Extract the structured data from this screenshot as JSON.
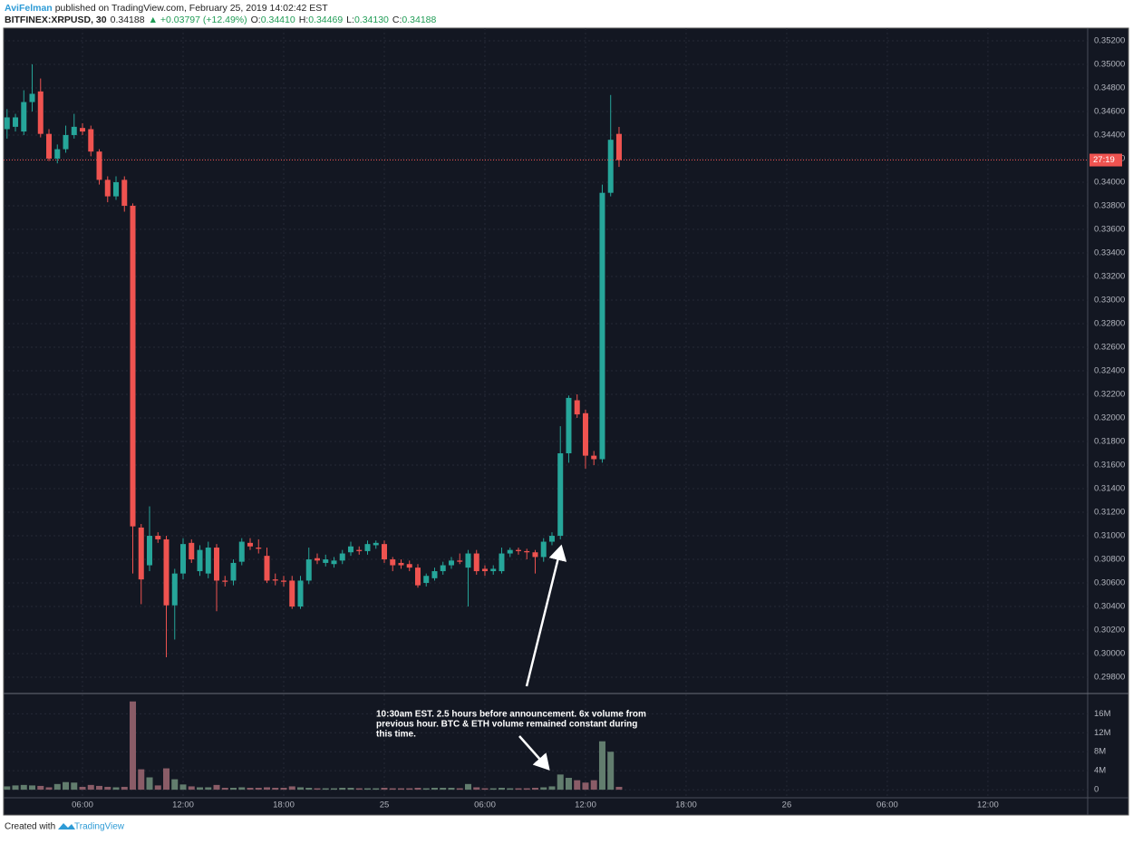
{
  "header": {
    "author": "AviFelman",
    "published": "published on TradingView.com, February 25, 2019 14:02:42 EST",
    "symbol": "BITFINEX:XRPUSD, 30",
    "last": "0.34188",
    "change": "▲ +0.03797 (+12.49%)",
    "ohlc": [
      {
        "label": "O:",
        "value": "0.34410"
      },
      {
        "label": "H:",
        "value": "0.34469"
      },
      {
        "label": "L:",
        "value": "0.34130"
      },
      {
        "label": "C:",
        "value": "0.34188"
      }
    ]
  },
  "footer": {
    "text": "Created with",
    "brand": "TradingView"
  },
  "chart_data": {
    "type": "candlestick",
    "x": [
      1.5,
      2,
      2.5,
      3,
      3.5,
      4,
      4.5,
      5,
      5.5,
      6,
      6.5,
      7,
      7.5,
      8,
      8.5,
      9,
      9.5,
      10,
      10.5,
      11,
      11.5,
      12,
      12.5,
      13,
      13.5,
      14,
      14.5,
      15,
      15.5,
      16,
      16.5,
      17,
      17.5,
      18,
      18.5,
      19,
      19.5,
      20,
      20.5,
      21,
      21.5,
      22,
      22.5,
      23,
      23.5,
      24,
      24.5,
      25,
      25.5,
      26,
      26.5,
      27,
      27.5,
      28,
      28.5,
      29,
      29.5,
      30,
      30.5,
      31,
      31.5,
      32,
      32.5,
      33,
      33.5,
      34,
      34.5,
      35,
      35.5,
      36,
      36.5,
      37,
      37.5,
      38
    ],
    "open": [
      0.3445,
      0.3447,
      0.3443,
      0.3468,
      0.3477,
      0.3441,
      0.342,
      0.3428,
      0.344,
      0.3446,
      0.3445,
      0.3426,
      0.3402,
      0.3388,
      0.3402,
      0.338,
      0.3107,
      0.3075,
      0.31,
      0.3097,
      0.3041,
      0.3068,
      0.3094,
      0.307,
      0.3068,
      0.309,
      0.3062,
      0.3062,
      0.3078,
      0.3094,
      0.309,
      0.3083,
      0.3063,
      0.3062,
      0.3062,
      0.304,
      0.3062,
      0.3081,
      0.3077,
      0.3076,
      0.3079,
      0.3086,
      0.3088,
      0.3087,
      0.3092,
      0.3093,
      0.308,
      0.3077,
      0.3076,
      0.3073,
      0.306,
      0.3064,
      0.307,
      0.3075,
      0.3079,
      0.3073,
      0.3085,
      0.3072,
      0.307,
      0.307,
      0.3085,
      0.3088,
      0.3087,
      0.3086,
      0.3082,
      0.3095,
      0.31,
      0.317,
      0.3215,
      0.3204,
      0.3168,
      0.3165,
      0.3391,
      0.3441
    ],
    "high": [
      0.3462,
      0.3458,
      0.3478,
      0.35,
      0.3488,
      0.3445,
      0.3432,
      0.3448,
      0.3458,
      0.345,
      0.3448,
      0.3428,
      0.3405,
      0.3405,
      0.3405,
      0.3382,
      0.311,
      0.3125,
      0.3103,
      0.31,
      0.3072,
      0.3098,
      0.3097,
      0.3092,
      0.3095,
      0.3093,
      0.3066,
      0.308,
      0.3098,
      0.3098,
      0.3097,
      0.309,
      0.3068,
      0.3066,
      0.3066,
      0.3066,
      0.309,
      0.3085,
      0.3084,
      0.3082,
      0.3088,
      0.3095,
      0.3091,
      0.3096,
      0.3096,
      0.3096,
      0.3082,
      0.308,
      0.3079,
      0.3076,
      0.3068,
      0.3073,
      0.3078,
      0.3082,
      0.3085,
      0.3088,
      0.3088,
      0.3075,
      0.3075,
      0.309,
      0.309,
      0.309,
      0.3089,
      0.3088,
      0.3098,
      0.3103,
      0.3193,
      0.3219,
      0.322,
      0.3207,
      0.3172,
      0.3398,
      0.3474,
      0.34469
    ],
    "low": [
      0.3437,
      0.3443,
      0.344,
      0.346,
      0.3438,
      0.3418,
      0.3416,
      0.3425,
      0.3437,
      0.344,
      0.3422,
      0.3398,
      0.3383,
      0.3385,
      0.3375,
      0.3068,
      0.3042,
      0.307,
      0.3094,
      0.2997,
      0.3012,
      0.3063,
      0.3077,
      0.3066,
      0.3064,
      0.3036,
      0.3057,
      0.3058,
      0.3075,
      0.3088,
      0.3085,
      0.306,
      0.3058,
      0.3057,
      0.3038,
      0.3038,
      0.3059,
      0.3076,
      0.3074,
      0.3073,
      0.3076,
      0.3083,
      0.3084,
      0.3084,
      0.3089,
      0.3077,
      0.307,
      0.3072,
      0.307,
      0.3056,
      0.3057,
      0.3062,
      0.3067,
      0.3072,
      0.3076,
      0.304,
      0.3067,
      0.3066,
      0.3067,
      0.3068,
      0.3082,
      0.3084,
      0.308,
      0.3068,
      0.3078,
      0.3092,
      0.3097,
      0.3162,
      0.32,
      0.3157,
      0.316,
      0.3162,
      0.3388,
      0.3413
    ],
    "close": [
      0.3455,
      0.3455,
      0.3468,
      0.3475,
      0.3441,
      0.342,
      0.3428,
      0.344,
      0.3447,
      0.3443,
      0.3426,
      0.3402,
      0.3388,
      0.34,
      0.338,
      0.3108,
      0.3063,
      0.31,
      0.3097,
      0.3041,
      0.3068,
      0.3093,
      0.308,
      0.3088,
      0.309,
      0.3062,
      0.3061,
      0.3077,
      0.3095,
      0.3091,
      0.3089,
      0.3062,
      0.3062,
      0.3061,
      0.304,
      0.3062,
      0.308,
      0.3079,
      0.308,
      0.3079,
      0.3085,
      0.3091,
      0.3087,
      0.3093,
      0.3094,
      0.308,
      0.3075,
      0.3075,
      0.3073,
      0.3058,
      0.3066,
      0.307,
      0.3075,
      0.3079,
      0.3078,
      0.3085,
      0.307,
      0.307,
      0.3072,
      0.3085,
      0.3088,
      0.3087,
      0.3086,
      0.3082,
      0.3095,
      0.31,
      0.317,
      0.3217,
      0.3203,
      0.3168,
      0.3165,
      0.3391,
      0.3436,
      0.34188
    ],
    "volume": [
      700000,
      900000,
      1000000,
      900000,
      800000,
      500000,
      1200000,
      1600000,
      1500000,
      600000,
      1000000,
      800000,
      600000,
      500000,
      600000,
      18600000,
      4300000,
      2600000,
      900000,
      4500000,
      2200000,
      1100000,
      700000,
      500000,
      500000,
      1000000,
      400000,
      400000,
      500000,
      400000,
      400000,
      500000,
      400000,
      400000,
      700000,
      500000,
      400000,
      300000,
      300000,
      300000,
      400000,
      400000,
      300000,
      300000,
      300000,
      400000,
      300000,
      300000,
      300000,
      400000,
      300000,
      400000,
      400000,
      400000,
      300000,
      1200000,
      500000,
      300000,
      300000,
      400000,
      300000,
      300000,
      300000,
      400000,
      500000,
      700000,
      3200000,
      2500000,
      2000000,
      1500000,
      2000000,
      10200000,
      8000000,
      600000
    ],
    "xlim": [
      1.35,
      65.95
    ],
    "xticks": [
      {
        "value": 6,
        "label": "06:00"
      },
      {
        "value": 12,
        "label": "12:00"
      },
      {
        "value": 18,
        "label": "18:00"
      },
      {
        "value": 24,
        "label": "25"
      },
      {
        "value": 30,
        "label": "06:00"
      },
      {
        "value": 36,
        "label": "12:00"
      },
      {
        "value": 42,
        "label": "18:00"
      },
      {
        "value": 48,
        "label": "26"
      },
      {
        "value": 54,
        "label": "06:00"
      },
      {
        "value": 60,
        "label": "12:00"
      }
    ],
    "ylim": [
      0.29662,
      0.35292
    ],
    "yticks": [
      {
        "value": 0.352,
        "label": "0.35200"
      },
      {
        "value": 0.35,
        "label": "0.35000"
      },
      {
        "value": 0.348,
        "label": "0.34800"
      },
      {
        "value": 0.346,
        "label": "0.34600"
      },
      {
        "value": 0.344,
        "label": "0.34400"
      },
      {
        "value": 0.342,
        "label": "0.34200"
      },
      {
        "value": 0.34,
        "label": "0.34000"
      },
      {
        "value": 0.338,
        "label": "0.33800"
      },
      {
        "value": 0.336,
        "label": "0.33600"
      },
      {
        "value": 0.334,
        "label": "0.33400"
      },
      {
        "value": 0.332,
        "label": "0.33200"
      },
      {
        "value": 0.33,
        "label": "0.33000"
      },
      {
        "value": 0.328,
        "label": "0.32800"
      },
      {
        "value": 0.326,
        "label": "0.32600"
      },
      {
        "value": 0.324,
        "label": "0.32400"
      },
      {
        "value": 0.322,
        "label": "0.32200"
      },
      {
        "value": 0.32,
        "label": "0.32000"
      },
      {
        "value": 0.318,
        "label": "0.31800"
      },
      {
        "value": 0.316,
        "label": "0.31600"
      },
      {
        "value": 0.314,
        "label": "0.31400"
      },
      {
        "value": 0.312,
        "label": "0.31200"
      },
      {
        "value": 0.31,
        "label": "0.31000"
      },
      {
        "value": 0.308,
        "label": "0.30800"
      },
      {
        "value": 0.306,
        "label": "0.30600"
      },
      {
        "value": 0.304,
        "label": "0.30400"
      },
      {
        "value": 0.302,
        "label": "0.30200"
      },
      {
        "value": 0.3,
        "label": "0.30000"
      },
      {
        "value": 0.298,
        "label": "0.29800"
      }
    ],
    "volume_ylim": [
      -1700000,
      19700000
    ],
    "volume_yticks": [
      {
        "value": 16000000,
        "label": "16M"
      },
      {
        "value": 12000000,
        "label": "12M"
      },
      {
        "value": 8000000,
        "label": "8M"
      },
      {
        "value": 4000000,
        "label": "4M"
      },
      0
    ],
    "grid": true,
    "up_color": "#26a69a",
    "down_color": "#ef5350",
    "volume_up_color": "#627d6e",
    "volume_down_color": "#8a5c67",
    "countdown": "27:19",
    "annotation": [
      "10:30am EST. 2.5 hours before announcement. 6x volume from",
      "previous hour. BTC & ETH volume remained constant during",
      "this time."
    ]
  }
}
